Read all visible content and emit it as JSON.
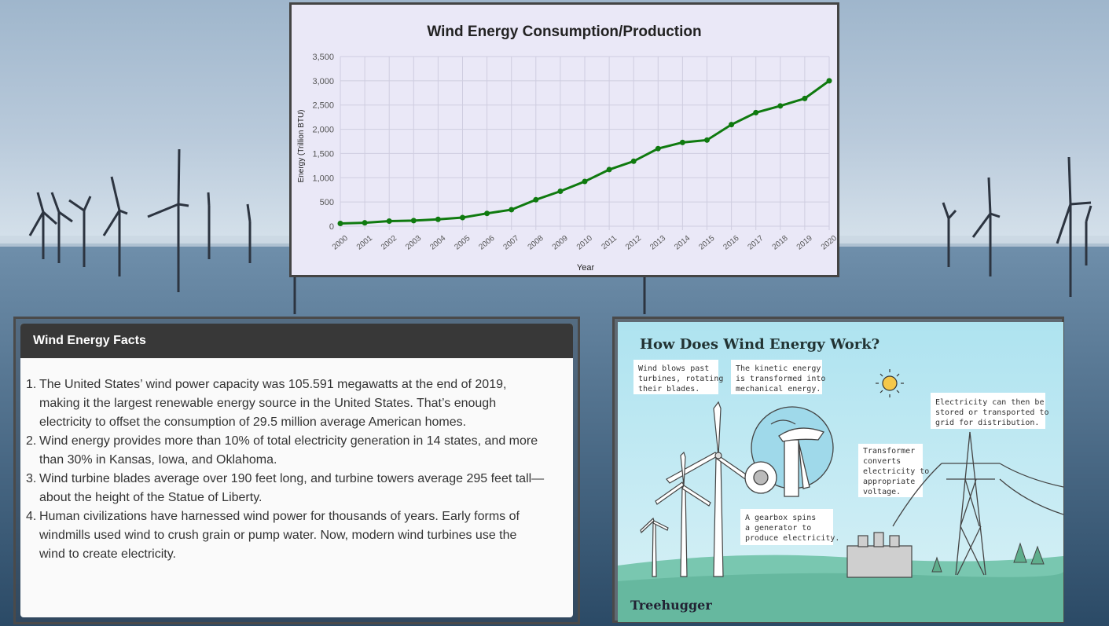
{
  "chart_data": {
    "type": "line",
    "title": "Wind Energy Consumption/Production",
    "xlabel": "Year",
    "ylabel": "Energy (Trillion BTU)",
    "ylim": [
      0,
      3500
    ],
    "yticks": [
      "0",
      "500",
      "1,000",
      "1,500",
      "2,000",
      "2,500",
      "3,000",
      "3,500"
    ],
    "categories": [
      "2000",
      "2001",
      "2002",
      "2003",
      "2004",
      "2005",
      "2006",
      "2007",
      "2008",
      "2009",
      "2010",
      "2011",
      "2012",
      "2013",
      "2014",
      "2015",
      "2016",
      "2017",
      "2018",
      "2019",
      "2020"
    ],
    "series": [
      {
        "name": "",
        "values": [
          57,
          70,
          105,
          115,
          142,
          178,
          264,
          341,
          546,
          721,
          923,
          1168,
          1340,
          1601,
          1728,
          1777,
          2096,
          2343,
          2482,
          2635,
          3000
        ]
      }
    ],
    "grid": true,
    "line_color": "#0f7a0f"
  },
  "facts": {
    "title": "Wind Energy Facts",
    "items": [
      {
        "num": "1.",
        "lines": [
          "The United States’ wind power capacity was 105.591 megawatts at the end of 2019,",
          "making it the largest renewable energy source in the United States. That’s enough",
          "electricity to offset the consumption of 29.5 million average American homes."
        ]
      },
      {
        "num": "2.",
        "lines": [
          "Wind energy provides more than 10% of total electricity generation in 14 states, and more",
          "than 30% in Kansas, Iowa, and Oklahoma."
        ]
      },
      {
        "num": "3.",
        "lines": [
          "Wind turbine blades average over 190 feet long, and turbine towers average 295 feet tall—",
          "about the height of the Statue of Liberty."
        ]
      },
      {
        "num": "4.",
        "lines": [
          "Human civilizations have harnessed wind power for thousands of years. Early forms of",
          "windmills used wind to crush grain or pump water. Now, modern wind turbines use the",
          "wind to create electricity."
        ]
      }
    ]
  },
  "infographic": {
    "title": "How Does Wind Energy Work?",
    "callout_1": [
      "Wind blows past",
      "turbines, rotating",
      "their blades."
    ],
    "callout_2": [
      "The kinetic energy",
      "is transformed into",
      "mechanical energy."
    ],
    "callout_3": [
      "Electricity can then be",
      "stored or transported to",
      "grid for distribution."
    ],
    "callout_4": [
      "Transformer",
      "converts",
      "electricity to",
      "appropriate",
      "voltage."
    ],
    "callout_5": [
      "A gearbox spins",
      "a generator to",
      "produce electricity."
    ],
    "brand": "Treehugger"
  }
}
